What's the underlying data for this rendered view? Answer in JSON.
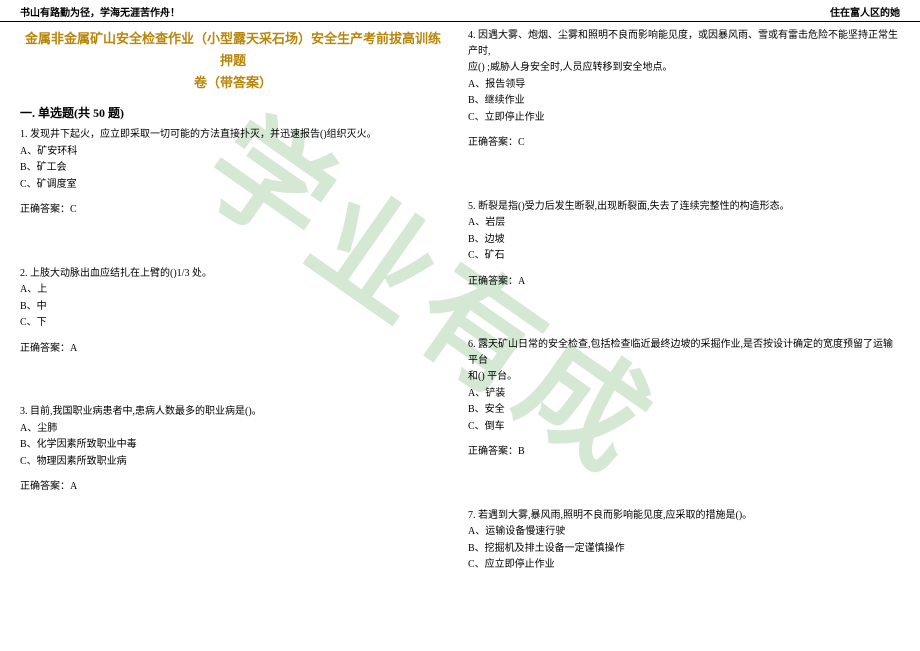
{
  "header": {
    "left": "书山有路勤为径，学海无涯苦作舟！",
    "right": "住在富人区的她"
  },
  "title_line1": "金属非金属矿山安全检查作业（小型露天采石场）安全生产考前拔高训练押题",
  "title_line2": "卷（带答案）",
  "section": "一. 单选题(共 50 题)",
  "watermark": "学业有成",
  "q1": {
    "text": "1. 发现井下起火，应立即采取一切可能的方法直接扑灭，并迅速报告()组织灭火。",
    "a": "A、矿安环科",
    "b": "B、矿工会",
    "c": "C、矿调度室",
    "ans": "正确答案：C"
  },
  "q2": {
    "text": "2. 上肢大动脉出血应结扎在上臂的()1/3 处。",
    "a": "A、上",
    "b": "B、中",
    "c": "C、下",
    "ans": "正确答案：A"
  },
  "q3": {
    "text": "3. 目前,我国职业病患者中,患病人数最多的职业病是()。",
    "a": "A、尘肺",
    "b": "B、化学因素所致职业中毒",
    "c": "C、物理因素所致职业病",
    "ans": "正确答案：A"
  },
  "q4": {
    "text1": "4. 因遇大雾、炮烟、尘雾和照明不良而影响能见度，或因暴风雨、雪或有雷击危险不能坚持正常生产时,",
    "text2": "应() ;威胁人身安全时,人员应转移到安全地点。",
    "a": "A、报告领导",
    "b": "B、继续作业",
    "c": "C、立即停止作业",
    "ans": "正确答案：C"
  },
  "q5": {
    "text": "5. 断裂是指()受力后发生断裂,出现断裂面,失去了连续完整性的构造形态。",
    "a": "A、岩层",
    "b": "B、边坡",
    "c": "C、矿石",
    "ans": "正确答案：A"
  },
  "q6": {
    "text1": "6. 露天矿山日常的安全检查,包括检查临近最终边坡的采掘作业,是否按设计确定的宽度预留了运输平台",
    "text2": "和() 平台。",
    "a": "A、铲装",
    "b": "B、安全",
    "c": "C、倒车",
    "ans": "正确答案：B"
  },
  "q7": {
    "text": "7. 若遇到大雾,暴风雨,照明不良而影响能见度,应采取的措施是()。",
    "a": "A、运输设备慢速行驶",
    "b": "B、挖掘机及排土设备一定谨慎操作",
    "c": "C、应立即停止作业"
  }
}
